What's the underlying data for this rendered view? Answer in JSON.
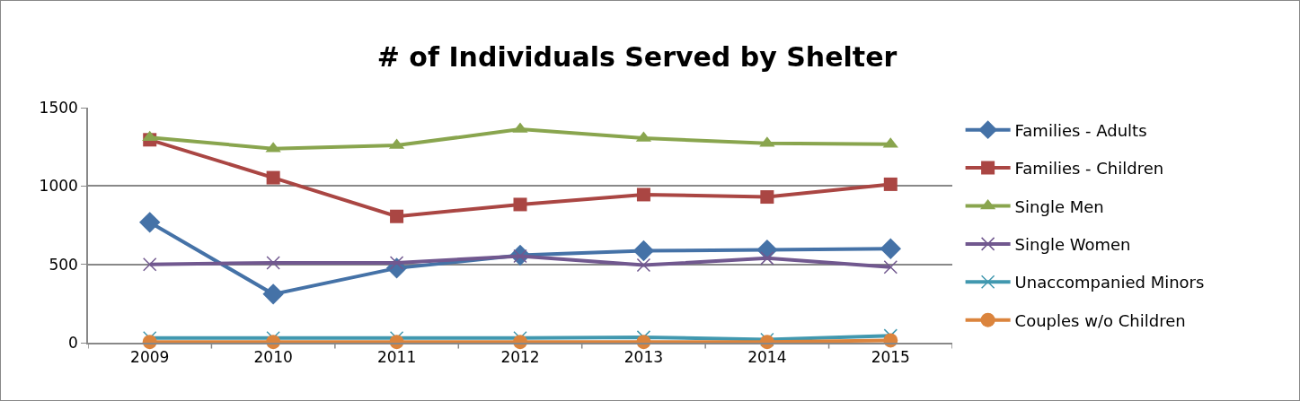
{
  "chart_data": {
    "type": "line",
    "title": "# of Individuals Served by Shelter",
    "categories": [
      "2009",
      "2010",
      "2011",
      "2012",
      "2013",
      "2014",
      "2015"
    ],
    "series": [
      {
        "name": "Families - Adults",
        "color": "#4572a7",
        "marker": "diamond",
        "values": [
          768,
          310,
          476,
          558,
          587,
          592,
          600
        ]
      },
      {
        "name": "Families - Children",
        "color": "#aa4643",
        "marker": "square",
        "values": [
          1295,
          1053,
          806,
          882,
          945,
          930,
          1011
        ]
      },
      {
        "name": "Single Men",
        "color": "#89a54e",
        "marker": "triangle",
        "values": [
          1310,
          1238,
          1259,
          1362,
          1305,
          1272,
          1267
        ]
      },
      {
        "name": "Single Women",
        "color": "#71588f",
        "marker": "cross",
        "values": [
          499,
          510,
          510,
          552,
          495,
          539,
          482
        ]
      },
      {
        "name": "Unaccompanied Minors",
        "color": "#4198af",
        "marker": "cross",
        "values": [
          30,
          30,
          30,
          30,
          35,
          20,
          45
        ]
      },
      {
        "name": "Couples w/o Children",
        "color": "#db843d",
        "marker": "circle",
        "values": [
          5,
          5,
          5,
          5,
          5,
          5,
          15
        ]
      }
    ],
    "ylim": [
      0,
      1500
    ],
    "yticks": [
      0,
      500,
      1000,
      1500
    ],
    "grid": "y",
    "legend": "right"
  }
}
